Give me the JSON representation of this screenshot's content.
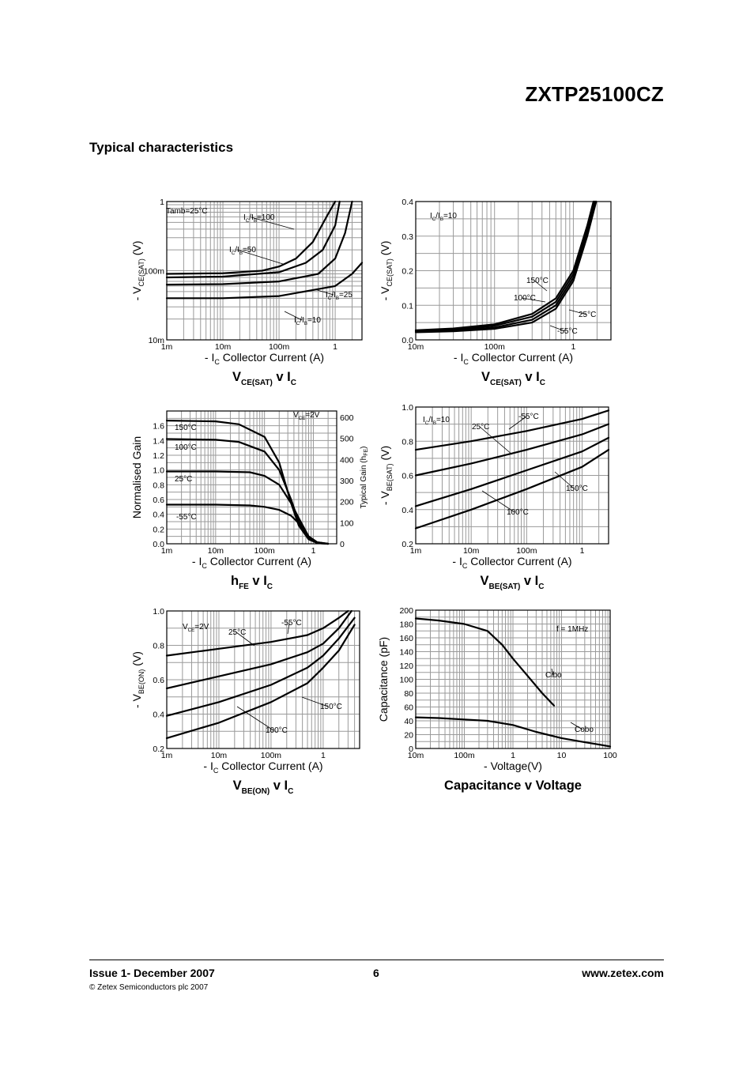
{
  "header": {
    "part_number": "ZXTP25100CZ",
    "section_title": "Typical characteristics"
  },
  "footer": {
    "issue": "Issue 1- December 2007",
    "page": "6",
    "website": "www.zetex.com",
    "copyright": "© Zetex Semiconductors plc 2007"
  },
  "chart_data": [
    {
      "type": "line",
      "title": "VCE(SAT) v IC",
      "xlabel": "- IC  Collector Current (A)",
      "ylabel": "- VCE(SAT) (V)",
      "x_scale": "log",
      "y_scale": "log",
      "xlim": [
        0.001,
        3
      ],
      "ylim": [
        0.01,
        1
      ],
      "x_ticks": [
        [
          0.001,
          "1m"
        ],
        [
          0.01,
          "10m"
        ],
        [
          0.1,
          "100m"
        ],
        [
          1,
          "1"
        ]
      ],
      "y_ticks": [
        [
          0.01,
          "10m"
        ],
        [
          0.1,
          "100m"
        ],
        [
          1,
          "1"
        ]
      ],
      "annotations": [
        "Tamb=25°C"
      ],
      "series": [
        {
          "name": "IC/IB=100",
          "x": [
            0.001,
            0.01,
            0.05,
            0.1,
            0.2,
            0.4,
            0.7,
            1.0
          ],
          "y": [
            0.09,
            0.092,
            0.1,
            0.115,
            0.15,
            0.26,
            0.6,
            1.0
          ]
        },
        {
          "name": "IC/IB=50",
          "x": [
            0.001,
            0.01,
            0.1,
            0.3,
            0.6,
            1.0,
            1.2
          ],
          "y": [
            0.08,
            0.082,
            0.095,
            0.13,
            0.2,
            0.45,
            1.0
          ]
        },
        {
          "name": "IC/IB=25",
          "x": [
            0.001,
            0.01,
            0.1,
            0.5,
            1.0,
            1.5,
            2.0
          ],
          "y": [
            0.063,
            0.064,
            0.07,
            0.09,
            0.15,
            0.35,
            1.0
          ]
        },
        {
          "name": "IC/IB=10",
          "x": [
            0.001,
            0.01,
            0.1,
            1.0,
            2.0,
            3.0
          ],
          "y": [
            0.04,
            0.04,
            0.043,
            0.06,
            0.09,
            0.13
          ]
        }
      ],
      "labels": [
        "IC/IB=100",
        "IC/IB=50",
        "IC/IB=25",
        "IC/IB=10"
      ]
    },
    {
      "type": "line",
      "title": "VCE(SAT) v IC",
      "xlabel": "- IC  Collector Current (A)",
      "ylabel": "- VCE(SAT) (V)",
      "x_scale": "log",
      "y_scale": "linear",
      "xlim": [
        0.01,
        3
      ],
      "ylim": [
        0,
        0.4
      ],
      "x_ticks": [
        [
          0.01,
          "10m"
        ],
        [
          0.1,
          "100m"
        ],
        [
          1,
          "1"
        ]
      ],
      "y_ticks": [
        [
          0,
          "0.0"
        ],
        [
          0.1,
          "0.1"
        ],
        [
          0.2,
          "0.2"
        ],
        [
          0.3,
          "0.3"
        ],
        [
          0.4,
          "0.4"
        ]
      ],
      "annotations": [
        "IC/IB=10"
      ],
      "series": [
        {
          "name": "150°C",
          "x": [
            0.01,
            0.03,
            0.1,
            0.3,
            0.6,
            1.0,
            1.5,
            1.8
          ],
          "y": [
            0.028,
            0.033,
            0.045,
            0.075,
            0.12,
            0.2,
            0.33,
            0.4
          ]
        },
        {
          "name": "100°C",
          "x": [
            0.01,
            0.03,
            0.1,
            0.3,
            0.6,
            1.0,
            1.5,
            1.85
          ],
          "y": [
            0.026,
            0.03,
            0.041,
            0.067,
            0.11,
            0.19,
            0.32,
            0.4
          ]
        },
        {
          "name": "25°C",
          "x": [
            0.01,
            0.03,
            0.1,
            0.3,
            0.6,
            1.0,
            1.5,
            1.9
          ],
          "y": [
            0.024,
            0.027,
            0.036,
            0.058,
            0.1,
            0.18,
            0.31,
            0.4
          ]
        },
        {
          "name": "-55°C",
          "x": [
            0.01,
            0.03,
            0.1,
            0.3,
            0.6,
            1.0,
            1.5,
            1.95
          ],
          "y": [
            0.022,
            0.025,
            0.032,
            0.05,
            0.09,
            0.17,
            0.3,
            0.4
          ]
        }
      ],
      "labels": [
        "150°C",
        "100°C",
        "25°C",
        "-55°C"
      ]
    },
    {
      "type": "line",
      "title": "hFE v IC",
      "xlabel": "- IC  Collector Current (A)",
      "ylabel": "Normalised Gain",
      "y2label": "Typical Gain (hFE)",
      "x_scale": "log",
      "y_scale": "linear",
      "xlim": [
        0.001,
        3
      ],
      "ylim": [
        0,
        1.8
      ],
      "y2lim": [
        0,
        630
      ],
      "x_ticks": [
        [
          0.001,
          "1m"
        ],
        [
          0.01,
          "10m"
        ],
        [
          0.1,
          "100m"
        ],
        [
          1,
          "1"
        ]
      ],
      "y_ticks": [
        [
          0,
          "0.0"
        ],
        [
          0.2,
          "0.2"
        ],
        [
          0.4,
          "0.4"
        ],
        [
          0.6,
          "0.6"
        ],
        [
          0.8,
          "0.8"
        ],
        [
          1.0,
          "1.0"
        ],
        [
          1.2,
          "1.2"
        ],
        [
          1.4,
          "1.4"
        ],
        [
          1.6,
          "1.6"
        ]
      ],
      "y2_ticks": [
        [
          0,
          "0"
        ],
        [
          100,
          "100"
        ],
        [
          200,
          "200"
        ],
        [
          300,
          "300"
        ],
        [
          400,
          "400"
        ],
        [
          500,
          "500"
        ],
        [
          600,
          "600"
        ]
      ],
      "annotations": [
        "VCE=2V"
      ],
      "series": [
        {
          "name": "150°C",
          "x": [
            0.001,
            0.01,
            0.03,
            0.1,
            0.2,
            0.35,
            0.5,
            0.8,
            1.2,
            2.0
          ],
          "y": [
            1.67,
            1.66,
            1.62,
            1.45,
            1.1,
            0.55,
            0.25,
            0.06,
            0.01,
            0.0
          ]
        },
        {
          "name": "100°C",
          "x": [
            0.001,
            0.01,
            0.03,
            0.1,
            0.2,
            0.35,
            0.5,
            0.8,
            1.2,
            2.0
          ],
          "y": [
            1.42,
            1.41,
            1.38,
            1.25,
            1.0,
            0.6,
            0.3,
            0.08,
            0.01,
            0.0
          ]
        },
        {
          "name": "25°C",
          "x": [
            0.001,
            0.01,
            0.05,
            0.1,
            0.2,
            0.35,
            0.5,
            0.8,
            1.2,
            2.0
          ],
          "y": [
            0.98,
            0.98,
            0.97,
            0.92,
            0.8,
            0.55,
            0.35,
            0.1,
            0.02,
            0.0
          ]
        },
        {
          "name": "-55°C",
          "x": [
            0.001,
            0.01,
            0.05,
            0.1,
            0.2,
            0.35,
            0.5,
            0.8,
            1.2,
            2.0
          ],
          "y": [
            0.53,
            0.53,
            0.52,
            0.5,
            0.46,
            0.38,
            0.28,
            0.1,
            0.02,
            0.0
          ]
        }
      ],
      "labels": [
        "150°C",
        "100°C",
        "25°C",
        "-55°C"
      ]
    },
    {
      "type": "line",
      "title": "VBE(SAT) v IC",
      "xlabel": "- IC  Collector Current (A)",
      "ylabel": "- VBE(SAT) (V)",
      "x_scale": "log",
      "y_scale": "linear",
      "xlim": [
        0.001,
        3
      ],
      "ylim": [
        0.2,
        1.0
      ],
      "x_ticks": [
        [
          0.001,
          "1m"
        ],
        [
          0.01,
          "10m"
        ],
        [
          0.1,
          "100m"
        ],
        [
          1,
          "1"
        ]
      ],
      "y_ticks": [
        [
          0.2,
          "0.2"
        ],
        [
          0.4,
          "0.4"
        ],
        [
          0.6,
          "0.6"
        ],
        [
          0.8,
          "0.8"
        ],
        [
          1.0,
          "1.0"
        ]
      ],
      "annotations": [
        "IC/IB=10"
      ],
      "series": [
        {
          "name": "-55°C",
          "x": [
            0.001,
            0.01,
            0.1,
            1.0,
            3.0
          ],
          "y": [
            0.75,
            0.8,
            0.86,
            0.93,
            0.98
          ]
        },
        {
          "name": "25°C",
          "x": [
            0.001,
            0.01,
            0.1,
            1.0,
            3.0
          ],
          "y": [
            0.6,
            0.67,
            0.75,
            0.84,
            0.9
          ]
        },
        {
          "name": "100°C",
          "x": [
            0.001,
            0.01,
            0.1,
            1.0,
            3.0
          ],
          "y": [
            0.42,
            0.52,
            0.63,
            0.74,
            0.82
          ]
        },
        {
          "name": "150°C",
          "x": [
            0.001,
            0.01,
            0.1,
            1.0,
            3.0
          ],
          "y": [
            0.29,
            0.4,
            0.52,
            0.65,
            0.75
          ]
        }
      ],
      "labels": [
        "-55°C",
        "25°C",
        "100°C",
        "150°C"
      ]
    },
    {
      "type": "line",
      "title": "VBE(ON) v IC",
      "xlabel": "- IC  Collector Current (A)",
      "ylabel": "- VBE(ON) (V)",
      "x_scale": "log",
      "y_scale": "linear",
      "xlim": [
        0.001,
        5
      ],
      "ylim": [
        0.2,
        1.0
      ],
      "x_ticks": [
        [
          0.001,
          "1m"
        ],
        [
          0.01,
          "10m"
        ],
        [
          0.1,
          "100m"
        ],
        [
          1,
          "1"
        ]
      ],
      "y_ticks": [
        [
          0.2,
          "0.2"
        ],
        [
          0.4,
          "0.4"
        ],
        [
          0.6,
          "0.6"
        ],
        [
          0.8,
          "0.8"
        ],
        [
          1.0,
          "1.0"
        ]
      ],
      "annotations": [
        "VCE=2V"
      ],
      "series": [
        {
          "name": "-55°C",
          "x": [
            0.001,
            0.01,
            0.1,
            0.5,
            1.0,
            2.0,
            3.0
          ],
          "y": [
            0.74,
            0.78,
            0.82,
            0.86,
            0.9,
            0.96,
            1.0
          ]
        },
        {
          "name": "25°C",
          "x": [
            0.001,
            0.01,
            0.1,
            0.5,
            1.0,
            2.0,
            3.5
          ],
          "y": [
            0.55,
            0.62,
            0.69,
            0.76,
            0.81,
            0.9,
            1.0
          ]
        },
        {
          "name": "100°C",
          "x": [
            0.001,
            0.01,
            0.1,
            0.5,
            1.0,
            2.0,
            4.0
          ],
          "y": [
            0.39,
            0.47,
            0.57,
            0.67,
            0.74,
            0.84,
            0.96
          ]
        },
        {
          "name": "150°C",
          "x": [
            0.001,
            0.01,
            0.1,
            0.5,
            1.0,
            2.0,
            4.0
          ],
          "y": [
            0.26,
            0.35,
            0.47,
            0.58,
            0.67,
            0.77,
            0.92
          ]
        }
      ],
      "labels": [
        "-55°C",
        "25°C",
        "100°C",
        "150°C"
      ]
    },
    {
      "type": "line",
      "title": "Capacitance v Voltage",
      "xlabel": "- Voltage(V)",
      "ylabel": "Capacitance (pF)",
      "x_scale": "log",
      "y_scale": "linear",
      "xlim": [
        0.01,
        100
      ],
      "ylim": [
        0,
        200
      ],
      "x_ticks": [
        [
          0.01,
          "10m"
        ],
        [
          0.1,
          "100m"
        ],
        [
          1,
          "1"
        ],
        [
          10,
          "10"
        ],
        [
          100,
          "100"
        ]
      ],
      "y_ticks": [
        [
          0,
          "0"
        ],
        [
          20,
          "20"
        ],
        [
          40,
          "40"
        ],
        [
          60,
          "60"
        ],
        [
          80,
          "80"
        ],
        [
          100,
          "100"
        ],
        [
          120,
          "120"
        ],
        [
          140,
          "140"
        ],
        [
          160,
          "160"
        ],
        [
          180,
          "180"
        ],
        [
          200,
          "200"
        ]
      ],
      "annotations": [
        "f = 1MHz"
      ],
      "series": [
        {
          "name": "Cibo",
          "x": [
            0.01,
            0.03,
            0.1,
            0.3,
            0.6,
            1.0,
            2.0,
            4.0,
            7.0
          ],
          "y": [
            188,
            185,
            180,
            170,
            150,
            130,
            105,
            80,
            62
          ]
        },
        {
          "name": "Cobo",
          "x": [
            0.01,
            0.03,
            0.1,
            0.3,
            1.0,
            3.0,
            10.0,
            30.0,
            100.0
          ],
          "y": [
            45,
            44,
            42,
            40,
            34,
            24,
            15,
            9,
            3
          ]
        }
      ],
      "labels": [
        "Cibo",
        "Cobo"
      ]
    }
  ],
  "chart_titles": [
    {
      "main": "V",
      "sub": "CE(SAT)",
      "tail1": " v I",
      "sub2": "C"
    },
    {
      "main": "V",
      "sub": "CE(SAT)",
      "tail1": " v I",
      "sub2": "C"
    },
    {
      "main": "h",
      "sub": "FE",
      "tail1": " v I",
      "sub2": "C"
    },
    {
      "main": "V",
      "sub": "BE(SAT)",
      "tail1": " v I",
      "sub2": "C"
    },
    {
      "main": "V",
      "sub": "BE(ON)",
      "tail1": " v I",
      "sub2": "C"
    },
    {
      "main": "Capacitance v Voltage",
      "sub": "",
      "tail1": "",
      "sub2": ""
    }
  ]
}
